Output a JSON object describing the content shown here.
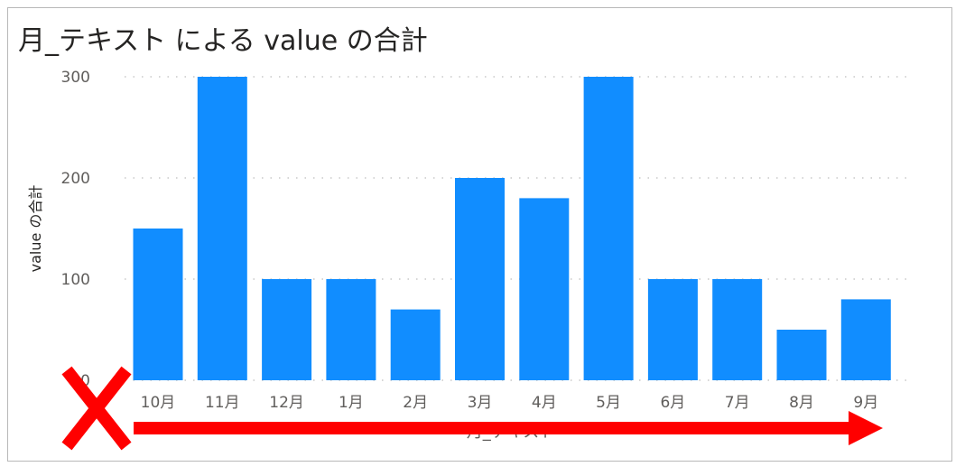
{
  "chart_data": {
    "type": "bar",
    "title": "月_テキスト による value の合計",
    "xlabel": "月_テキスト",
    "ylabel": "value の合計",
    "categories": [
      "10月",
      "11月",
      "12月",
      "1月",
      "2月",
      "3月",
      "4月",
      "5月",
      "6月",
      "7月",
      "8月",
      "9月"
    ],
    "values": [
      150,
      300,
      100,
      100,
      70,
      200,
      180,
      300,
      100,
      100,
      50,
      80
    ],
    "ylim": [
      0,
      300
    ],
    "yticks": [
      0,
      100,
      200,
      300
    ],
    "grid": true,
    "bar_color": "#118dff"
  },
  "annotations": {
    "x_mark_color": "#ff0000",
    "arrow_color": "#ff0000"
  }
}
